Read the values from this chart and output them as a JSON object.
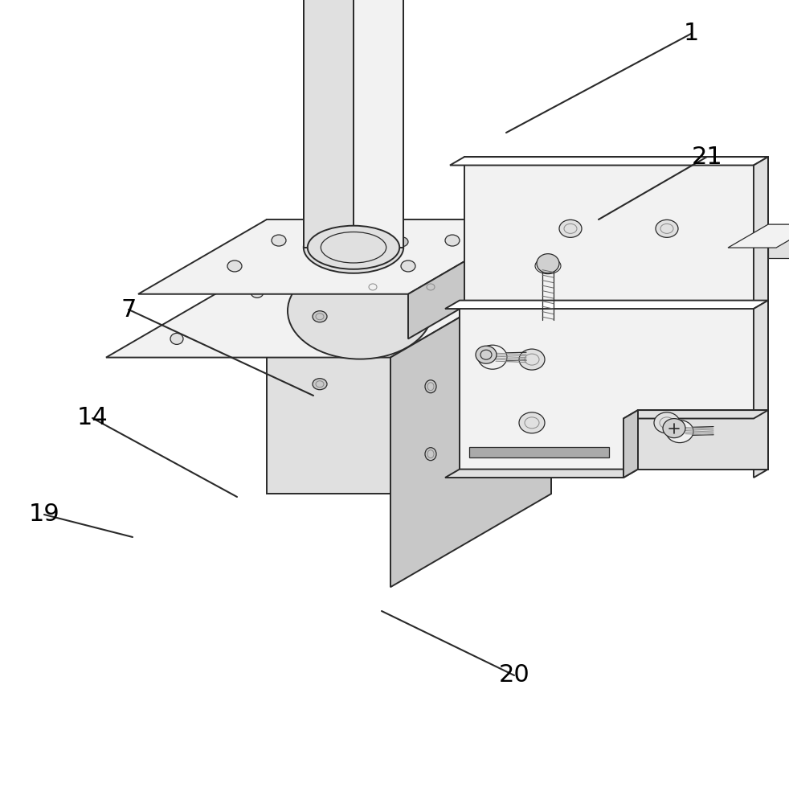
{
  "background_color": "#ffffff",
  "line_color": "#2a2a2a",
  "fill_white": "#ffffff",
  "fill_light": "#f2f2f2",
  "fill_mid": "#e0e0e0",
  "fill_dark": "#c8c8c8",
  "fill_side": "#d5d5d5",
  "label_color": "#000000",
  "label_fontsize": 22,
  "lw_main": 1.4,
  "lw_thin": 0.9
}
